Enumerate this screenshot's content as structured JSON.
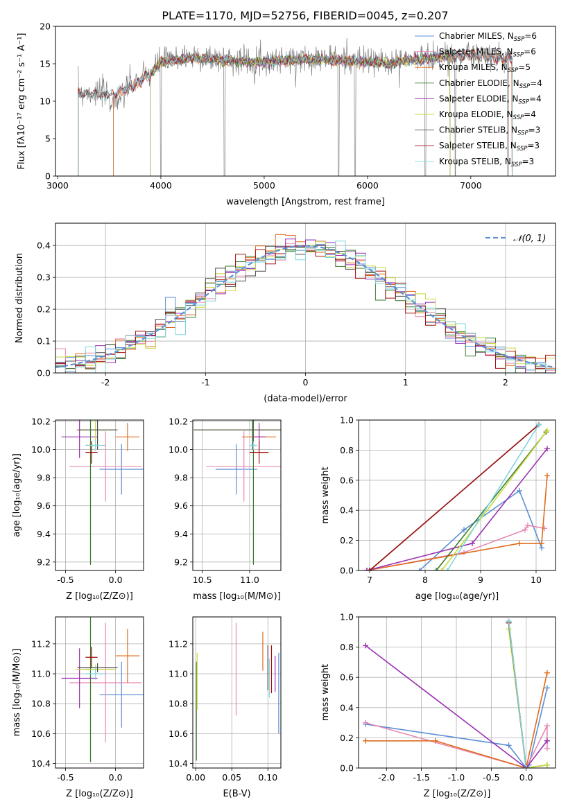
{
  "title": "PLATE=1170, MJD=52756, FIBERID=0045, z=0.207",
  "chart_data": [
    {
      "id": "spectrum",
      "type": "line",
      "xlabel": "wavelength [Angstrom, rest frame]",
      "ylabel": "Flux [fλ10⁻¹⁷ erg cm⁻² s⁻¹ A⁻¹]",
      "xlim": [
        2980,
        7820
      ],
      "ylim": [
        0,
        20
      ],
      "xticks": [
        3000,
        4000,
        5000,
        6000,
        7000
      ],
      "yticks": [
        0,
        5,
        10,
        15,
        20
      ],
      "legend_position": "top-right",
      "series": [
        {
          "name": "Chabrier MILES, N_SSP=6",
          "color": "#5b8fd6",
          "range": [
            3540,
            7400
          ]
        },
        {
          "name": "Salpeter MILES, N_SSP=6",
          "color": "#e787b3",
          "range": [
            3540,
            7400
          ]
        },
        {
          "name": "Kroupa MILES, N_SSP=5",
          "color": "#e06b1c",
          "range": [
            3540,
            7400
          ]
        },
        {
          "name": "Chabrier ELODIE, N_SSP=4",
          "color": "#3c7a2c",
          "range": [
            3900,
            6800
          ]
        },
        {
          "name": "Salpeter ELODIE, N_SSP=4",
          "color": "#9b30b0",
          "range": [
            3900,
            6800
          ]
        },
        {
          "name": "Kroupa ELODIE, N_SSP=4",
          "color": "#c8d93c",
          "range": [
            3900,
            6800
          ]
        },
        {
          "name": "Chabrier STELIB, N_SSP=3",
          "color": "#4a4a4a",
          "range": [
            3200,
            7400
          ]
        },
        {
          "name": "Salpeter STELIB, N_SSP=3",
          "color": "#a01010",
          "range": [
            3200,
            7400
          ]
        },
        {
          "name": "Kroupa STELIB, N_SSP=3",
          "color": "#7fd6dc",
          "range": [
            3200,
            7400
          ]
        }
      ],
      "data_series": {
        "name": "data",
        "color": "#808080"
      },
      "continuum_points": [
        [
          3200,
          11.2
        ],
        [
          3500,
          11.0
        ],
        [
          3700,
          12.0
        ],
        [
          3900,
          13.8
        ],
        [
          4000,
          15.4
        ],
        [
          4300,
          16.0
        ],
        [
          4600,
          15.6
        ],
        [
          4900,
          15.4
        ],
        [
          5200,
          15.6
        ],
        [
          5500,
          15.8
        ],
        [
          5800,
          15.6
        ],
        [
          6200,
          15.2
        ],
        [
          6600,
          16.0
        ],
        [
          7000,
          16.3
        ],
        [
          7400,
          15.8
        ]
      ]
    },
    {
      "id": "residuals",
      "type": "histogram",
      "xlabel": "(data-model)/error",
      "ylabel": "Normed distribution",
      "xlim": [
        -2.5,
        2.5
      ],
      "ylim": [
        0,
        0.47
      ],
      "xticks": [
        -2,
        -1,
        0,
        1,
        2
      ],
      "yticks": [
        0.0,
        0.1,
        0.2,
        0.3,
        0.4
      ],
      "legend": [
        {
          "label": "𝒩(0, 1)",
          "style": "dashed",
          "color": "#5b8fd6"
        }
      ],
      "legend_position": "top-right",
      "bin_width": 0.1
    },
    {
      "id": "age_vs_Z",
      "type": "errorbar",
      "xlabel": "Z [log₁₀(Z/Z⊙)]",
      "ylabel": "age  [log₁₀(age/yr)]",
      "xlim": [
        -0.6,
        0.28
      ],
      "ylim": [
        9.14,
        10.21
      ],
      "xticks": [
        -0.5,
        0.0
      ],
      "yticks": [
        9.2,
        9.4,
        9.6,
        9.8,
        10.0,
        10.2
      ],
      "points": [
        {
          "x": 0.06,
          "y": 9.86,
          "xerr": 0.22,
          "yerr": 0.18,
          "color": "#5b8fd6"
        },
        {
          "x": -0.1,
          "y": 9.88,
          "xerr": 0.36,
          "yerr": 0.25,
          "color": "#e787b3"
        },
        {
          "x": 0.12,
          "y": 10.09,
          "xerr": 0.12,
          "yerr": 0.1,
          "color": "#e06b1c"
        },
        {
          "x": -0.25,
          "y": 10.03,
          "xerr": 0.05,
          "yerr": 0.85,
          "color": "#3c7a2c"
        },
        {
          "x": -0.36,
          "y": 10.09,
          "xerr": 0.18,
          "yerr": 0.15,
          "color": "#9b30b0"
        },
        {
          "x": -0.2,
          "y": 10.14,
          "xerr": 0.2,
          "yerr": 0.14,
          "color": "#c8d93c"
        },
        {
          "x": -0.18,
          "y": 10.14,
          "xerr": 0.2,
          "yerr": 0.14,
          "color": "#4a4a4a"
        },
        {
          "x": -0.24,
          "y": 9.98,
          "xerr": 0.06,
          "yerr": 0.08,
          "color": "#a01010"
        },
        {
          "x": -0.2,
          "y": 10.03,
          "xerr": 0.1,
          "yerr": 0.04,
          "color": "#7fd6dc"
        }
      ]
    },
    {
      "id": "age_vs_mass",
      "type": "errorbar",
      "xlabel": "mass [log₁₀(M/M⊙)]",
      "ylabel": "",
      "xlim": [
        10.4,
        11.33
      ],
      "ylim": [
        9.14,
        10.21
      ],
      "xticks": [
        10.5,
        11.0
      ],
      "yticks": [
        9.2,
        9.4,
        9.6,
        9.8,
        10.0,
        10.2
      ],
      "points": [
        {
          "x": 10.86,
          "y": 9.86,
          "xerr": 0.22,
          "yerr": 0.18,
          "color": "#5b8fd6"
        },
        {
          "x": 10.94,
          "y": 9.88,
          "xerr": 0.4,
          "yerr": 0.25,
          "color": "#e787b3"
        },
        {
          "x": 11.1,
          "y": 10.09,
          "xerr": 0.18,
          "yerr": 0.06,
          "color": "#e06b1c"
        },
        {
          "x": 11.04,
          "y": 10.03,
          "xerr": 0.03,
          "yerr": 0.85,
          "color": "#3c7a2c"
        },
        {
          "x": 11.1,
          "y": 10.09,
          "xerr": 0.07,
          "yerr": 0.1,
          "color": "#9b30b0"
        },
        {
          "x": 11.03,
          "y": 10.14,
          "xerr": 0.62,
          "yerr": 0.14,
          "color": "#c8d93c"
        },
        {
          "x": 11.03,
          "y": 10.14,
          "xerr": 0.62,
          "yerr": 0.14,
          "color": "#4a4a4a"
        },
        {
          "x": 11.1,
          "y": 9.98,
          "xerr": 0.1,
          "yerr": 0.08,
          "color": "#a01010"
        },
        {
          "x": 11.04,
          "y": 10.03,
          "xerr": 0.04,
          "yerr": 0.03,
          "color": "#7fd6dc"
        }
      ]
    },
    {
      "id": "weight_vs_age",
      "type": "line",
      "xlabel": "age  [log₁₀(age/yr)]",
      "ylabel": "mass weight",
      "xlim": [
        6.8,
        10.35
      ],
      "ylim": [
        0.0,
        1.0
      ],
      "xticks": [
        7,
        8,
        9,
        10
      ],
      "yticks": [
        0.0,
        0.2,
        0.4,
        0.6,
        0.8,
        1.0
      ],
      "series": [
        {
          "color": "#5b8fd6",
          "points": [
            [
              7.9,
              0.0
            ],
            [
              8.7,
              0.27
            ],
            [
              9.7,
              0.53
            ],
            [
              10.1,
              0.15
            ]
          ]
        },
        {
          "color": "#e787b3",
          "points": [
            [
              6.95,
              0.0
            ],
            [
              8.7,
              0.12
            ],
            [
              9.8,
              0.27
            ],
            [
              9.85,
              0.3
            ],
            [
              10.15,
              0.28
            ]
          ]
        },
        {
          "color": "#e06b1c",
          "points": [
            [
              6.95,
              0.0
            ],
            [
              9.7,
              0.18
            ],
            [
              10.1,
              0.18
            ],
            [
              10.2,
              0.63
            ]
          ]
        },
        {
          "color": "#3c7a2c",
          "points": [
            [
              8.2,
              0.0
            ],
            [
              10.18,
              0.92
            ]
          ]
        },
        {
          "color": "#9b30b0",
          "points": [
            [
              6.95,
              0.0
            ],
            [
              8.85,
              0.18
            ],
            [
              10.2,
              0.81
            ]
          ]
        },
        {
          "color": "#c8d93c",
          "points": [
            [
              8.3,
              0.0
            ],
            [
              10.2,
              0.93
            ]
          ]
        },
        {
          "color": "#4a4a4a",
          "points": [
            [
              7.0,
              0.0
            ],
            [
              10.05,
              0.97
            ]
          ]
        },
        {
          "color": "#a01010",
          "points": [
            [
              7.0,
              0.0
            ],
            [
              10.05,
              0.97
            ]
          ]
        },
        {
          "color": "#7fd6dc",
          "points": [
            [
              8.4,
              0.0
            ],
            [
              10.05,
              0.97
            ]
          ]
        }
      ]
    },
    {
      "id": "mass_vs_Z",
      "type": "errorbar",
      "xlabel": "Z [log₁₀(Z/Z⊙)]",
      "ylabel": "mass [log₁₀(M/M⊙)]",
      "xlim": [
        -0.6,
        0.28
      ],
      "ylim": [
        10.37,
        11.38
      ],
      "xticks": [
        -0.5,
        0.0
      ],
      "yticks": [
        10.4,
        10.6,
        10.8,
        11.0,
        11.2
      ],
      "points": [
        {
          "x": 0.06,
          "y": 10.86,
          "xerr": 0.22,
          "yerr": 0.22,
          "color": "#5b8fd6"
        },
        {
          "x": -0.1,
          "y": 10.94,
          "xerr": 0.36,
          "yerr": 0.4,
          "color": "#e787b3"
        },
        {
          "x": 0.12,
          "y": 11.12,
          "xerr": 0.12,
          "yerr": 0.18,
          "color": "#e06b1c"
        },
        {
          "x": -0.25,
          "y": 11.03,
          "xerr": 0.05,
          "yerr": 0.62,
          "color": "#3c7a2c"
        },
        {
          "x": -0.36,
          "y": 10.97,
          "xerr": 0.18,
          "yerr": 0.2,
          "color": "#9b30b0"
        },
        {
          "x": -0.2,
          "y": 11.03,
          "xerr": 0.2,
          "yerr": 0.03,
          "color": "#c8d93c"
        },
        {
          "x": -0.18,
          "y": 11.04,
          "xerr": 0.2,
          "yerr": 0.03,
          "color": "#4a4a4a"
        },
        {
          "x": -0.24,
          "y": 11.11,
          "xerr": 0.06,
          "yerr": 0.07,
          "color": "#a01010"
        },
        {
          "x": -0.2,
          "y": 11.0,
          "xerr": 0.1,
          "yerr": 0.04,
          "color": "#7fd6dc"
        }
      ]
    },
    {
      "id": "mass_vs_ebv",
      "type": "errorbar",
      "xlabel": "E(B-V)",
      "ylabel": "",
      "xlim": [
        -0.004,
        0.118
      ],
      "ylim": [
        10.37,
        11.38
      ],
      "xticks": [
        0.0,
        0.05,
        0.1
      ],
      "xtick_labels": [
        "0.00",
        "0.05",
        "0.10"
      ],
      "yticks": [
        10.4,
        10.6,
        10.8,
        11.0,
        11.2
      ],
      "points": [
        {
          "x": 0.115,
          "y": 10.87,
          "xerr": 0,
          "yerr": 0.27,
          "color": "#5b8fd6"
        },
        {
          "x": 0.056,
          "y": 11.03,
          "xerr": 0,
          "yerr": 0.31,
          "color": "#e787b3"
        },
        {
          "x": 0.093,
          "y": 11.15,
          "xerr": 0,
          "yerr": 0.13,
          "color": "#e06b1c"
        },
        {
          "x": 0.001,
          "y": 10.75,
          "xerr": 0,
          "yerr": 0.33,
          "color": "#3c7a2c"
        },
        {
          "x": 0.11,
          "y": 11.0,
          "xerr": 0,
          "yerr": 0.12,
          "color": "#9b30b0"
        },
        {
          "x": 0.002,
          "y": 10.95,
          "xerr": 0,
          "yerr": 0.19,
          "color": "#c8d93c"
        },
        {
          "x": 0.1,
          "y": 11.04,
          "xerr": 0,
          "yerr": 0.15,
          "color": "#4a4a4a"
        },
        {
          "x": 0.105,
          "y": 11.03,
          "xerr": 0,
          "yerr": 0.16,
          "color": "#a01010"
        },
        {
          "x": 0.102,
          "y": 10.97,
          "xerr": 0,
          "yerr": 0.13,
          "color": "#7fd6dc"
        }
      ]
    },
    {
      "id": "weight_vs_Z",
      "type": "line",
      "xlabel": "Z [log₁₀(Z/Z⊙)]",
      "ylabel": "mass weight",
      "xlim": [
        -2.4,
        0.42
      ],
      "ylim": [
        0.0,
        1.0
      ],
      "xticks": [
        -2.0,
        -1.5,
        -1.0,
        -0.5,
        0.0
      ],
      "yticks": [
        0.0,
        0.2,
        0.4,
        0.6,
        0.8,
        1.0
      ],
      "series": [
        {
          "color": "#5b8fd6",
          "points": [
            [
              -2.3,
              0.29
            ],
            [
              -0.25,
              0.15
            ],
            [
              0.0,
              0.0
            ],
            [
              0.04,
              0.02
            ],
            [
              0.3,
              0.53
            ]
          ]
        },
        {
          "color": "#e787b3",
          "points": [
            [
              -2.3,
              0.3
            ],
            [
              0.0,
              0.0
            ],
            [
              0.3,
              0.28
            ],
            [
              0.3,
              0.13
            ]
          ]
        },
        {
          "color": "#e06b1c",
          "points": [
            [
              -2.3,
              0.18
            ],
            [
              -1.3,
              0.18
            ],
            [
              0.0,
              0.0
            ],
            [
              0.3,
              0.63
            ]
          ]
        },
        {
          "color": "#3c7a2c",
          "points": [
            [
              -0.25,
              0.97
            ],
            [
              0.0,
              0.0
            ],
            [
              0.3,
              0.02
            ]
          ]
        },
        {
          "color": "#9b30b0",
          "points": [
            [
              -2.3,
              0.81
            ],
            [
              0.0,
              0.0
            ],
            [
              0.3,
              0.18
            ]
          ]
        },
        {
          "color": "#c8d93c",
          "points": [
            [
              -0.25,
              0.92
            ],
            [
              0.0,
              0.0
            ],
            [
              0.3,
              0.02
            ]
          ]
        },
        {
          "color": "#4a4a4a",
          "points": [
            [
              -0.25,
              0.97
            ],
            [
              0.0,
              0.0
            ]
          ]
        },
        {
          "color": "#a01010",
          "points": [
            [
              -0.25,
              0.96
            ],
            [
              0.0,
              0.0
            ]
          ]
        },
        {
          "color": "#7fd6dc",
          "points": [
            [
              -0.25,
              0.97
            ],
            [
              0.0,
              0.0
            ]
          ]
        }
      ]
    }
  ]
}
